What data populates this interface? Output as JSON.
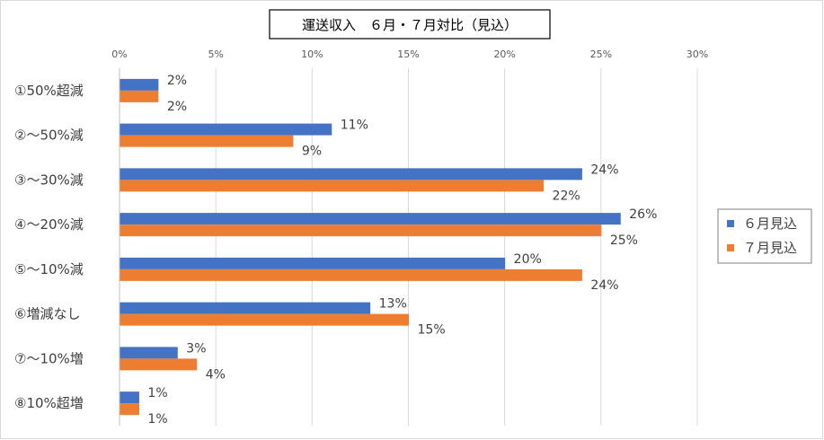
{
  "chart_data": {
    "type": "bar",
    "orientation": "horizontal",
    "title": "運送収入　６月・７月対比（見込）",
    "categories": [
      "①50%超減",
      "②～50%減",
      "③～30%減",
      "④～20%減",
      "⑤～10%減",
      "⑥増減なし",
      "⑦～10%増",
      "⑧10%超増"
    ],
    "series": [
      {
        "name": "６月見込",
        "color": "#4472C4",
        "values": [
          2,
          11,
          24,
          26,
          20,
          13,
          3,
          1
        ],
        "labels": [
          "2%",
          "11%",
          "24%",
          "26%",
          "20%",
          "13%",
          "3%",
          "1%"
        ]
      },
      {
        "name": "７月見込",
        "color": "#ED7D31",
        "values": [
          2,
          9,
          22,
          25,
          24,
          15,
          4,
          1
        ],
        "labels": [
          "2%",
          "9%",
          "22%",
          "25%",
          "24%",
          "15%",
          "4%",
          "1%"
        ]
      }
    ],
    "xlim": [
      0,
      30
    ],
    "xticks": [
      "0%",
      "5%",
      "10%",
      "15%",
      "20%",
      "25%",
      "30%"
    ],
    "xaxis_position": "top",
    "grid": true,
    "legend_position": "right"
  }
}
